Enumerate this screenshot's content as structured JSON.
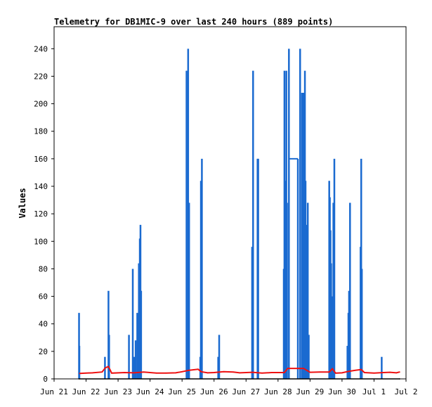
{
  "chart_data": {
    "type": "line",
    "title": "Telemetry for DB1MIC-9 over last 240 hours (889 points)",
    "ylabel": "Values",
    "xlabel": "",
    "x_ticks": [
      "Jun 21",
      "Jun 22",
      "Jun 23",
      "Jun 24",
      "Jun 25",
      "Jun 26",
      "Jun 27",
      "Jun 28",
      "Jun 29",
      "Jun 30",
      "Jul 1",
      "Jul 2"
    ],
    "y_ticks": [
      "0",
      "20",
      "40",
      "60",
      "80",
      "100",
      "120",
      "140",
      "160",
      "180",
      "200",
      "220",
      "240"
    ],
    "ylim": [
      0,
      256
    ],
    "xlim_days": [
      0,
      11
    ],
    "grid": false,
    "colors": {
      "spike_series": "#1a6ad0",
      "baseline_series": "#ee1111",
      "zero_series": "#000000"
    },
    "series": [
      {
        "color": "#1a6ad0",
        "style": "spikes",
        "points": [
          [
            0.78,
            48
          ],
          [
            0.79,
            24
          ],
          [
            1.59,
            16
          ],
          [
            1.7,
            64
          ],
          [
            1.72,
            32
          ],
          [
            2.34,
            32
          ],
          [
            2.46,
            80
          ],
          [
            2.5,
            16
          ],
          [
            2.55,
            28
          ],
          [
            2.6,
            48
          ],
          [
            2.65,
            84
          ],
          [
            2.68,
            102
          ],
          [
            2.7,
            112
          ],
          [
            2.72,
            64
          ],
          [
            4.14,
            224
          ],
          [
            4.19,
            240
          ],
          [
            4.22,
            128
          ],
          [
            4.57,
            16
          ],
          [
            4.59,
            144
          ],
          [
            4.62,
            160
          ],
          [
            5.13,
            16
          ],
          [
            5.16,
            32
          ],
          [
            6.19,
            96
          ],
          [
            6.22,
            224
          ],
          [
            6.36,
            160
          ],
          [
            6.38,
            160
          ],
          [
            7.18,
            80
          ],
          [
            7.2,
            224
          ],
          [
            7.23,
            144
          ],
          [
            7.26,
            224
          ],
          [
            7.28,
            128
          ],
          [
            7.34,
            240
          ],
          [
            7.62,
            160
          ],
          [
            7.69,
            240
          ],
          [
            7.75,
            208
          ],
          [
            7.8,
            208
          ],
          [
            7.84,
            224
          ],
          [
            7.86,
            144
          ],
          [
            7.9,
            112
          ],
          [
            7.93,
            128
          ],
          [
            7.96,
            32
          ],
          [
            8.6,
            144
          ],
          [
            8.62,
            132
          ],
          [
            8.64,
            108
          ],
          [
            8.66,
            84
          ],
          [
            8.68,
            60
          ],
          [
            8.7,
            36
          ],
          [
            8.73,
            128
          ],
          [
            8.76,
            160
          ],
          [
            9.17,
            24
          ],
          [
            9.2,
            48
          ],
          [
            9.22,
            64
          ],
          [
            9.25,
            128
          ],
          [
            9.58,
            96
          ],
          [
            9.6,
            160
          ],
          [
            9.62,
            80
          ],
          [
            10.24,
            16
          ]
        ]
      },
      {
        "color": "#ee1111",
        "style": "line",
        "points": [
          [
            0.8,
            4
          ],
          [
            1.0,
            4.2
          ],
          [
            1.2,
            4.4
          ],
          [
            1.5,
            5
          ],
          [
            1.6,
            8
          ],
          [
            1.7,
            9
          ],
          [
            1.8,
            4.2
          ],
          [
            2.2,
            4.6
          ],
          [
            2.5,
            4.4
          ],
          [
            2.8,
            5
          ],
          [
            3.2,
            4.2
          ],
          [
            3.5,
            4.2
          ],
          [
            3.8,
            4.4
          ],
          [
            4.0,
            5.2
          ],
          [
            4.2,
            6.2
          ],
          [
            4.5,
            7
          ],
          [
            4.6,
            5.2
          ],
          [
            4.8,
            4.4
          ],
          [
            5.0,
            4.6
          ],
          [
            5.3,
            5.2
          ],
          [
            5.6,
            5
          ],
          [
            5.8,
            4.4
          ],
          [
            6.2,
            4.8
          ],
          [
            6.5,
            4.2
          ],
          [
            6.8,
            4.6
          ],
          [
            7.2,
            4.6
          ],
          [
            7.3,
            7.6
          ],
          [
            7.8,
            7.6
          ],
          [
            8.0,
            4.8
          ],
          [
            8.3,
            5
          ],
          [
            8.6,
            5
          ],
          [
            8.7,
            7.4
          ],
          [
            8.8,
            4.2
          ],
          [
            9.0,
            4.4
          ],
          [
            9.2,
            5.4
          ],
          [
            9.4,
            6.2
          ],
          [
            9.6,
            6.8
          ],
          [
            9.7,
            4.6
          ],
          [
            10.0,
            4.2
          ],
          [
            10.3,
            4.6
          ],
          [
            10.5,
            4.8
          ],
          [
            10.7,
            4.4
          ],
          [
            10.8,
            5.0
          ]
        ]
      },
      {
        "color": "#000000",
        "style": "line",
        "points": [
          [
            0.78,
            0
          ],
          [
            10.8,
            0
          ]
        ]
      }
    ]
  }
}
